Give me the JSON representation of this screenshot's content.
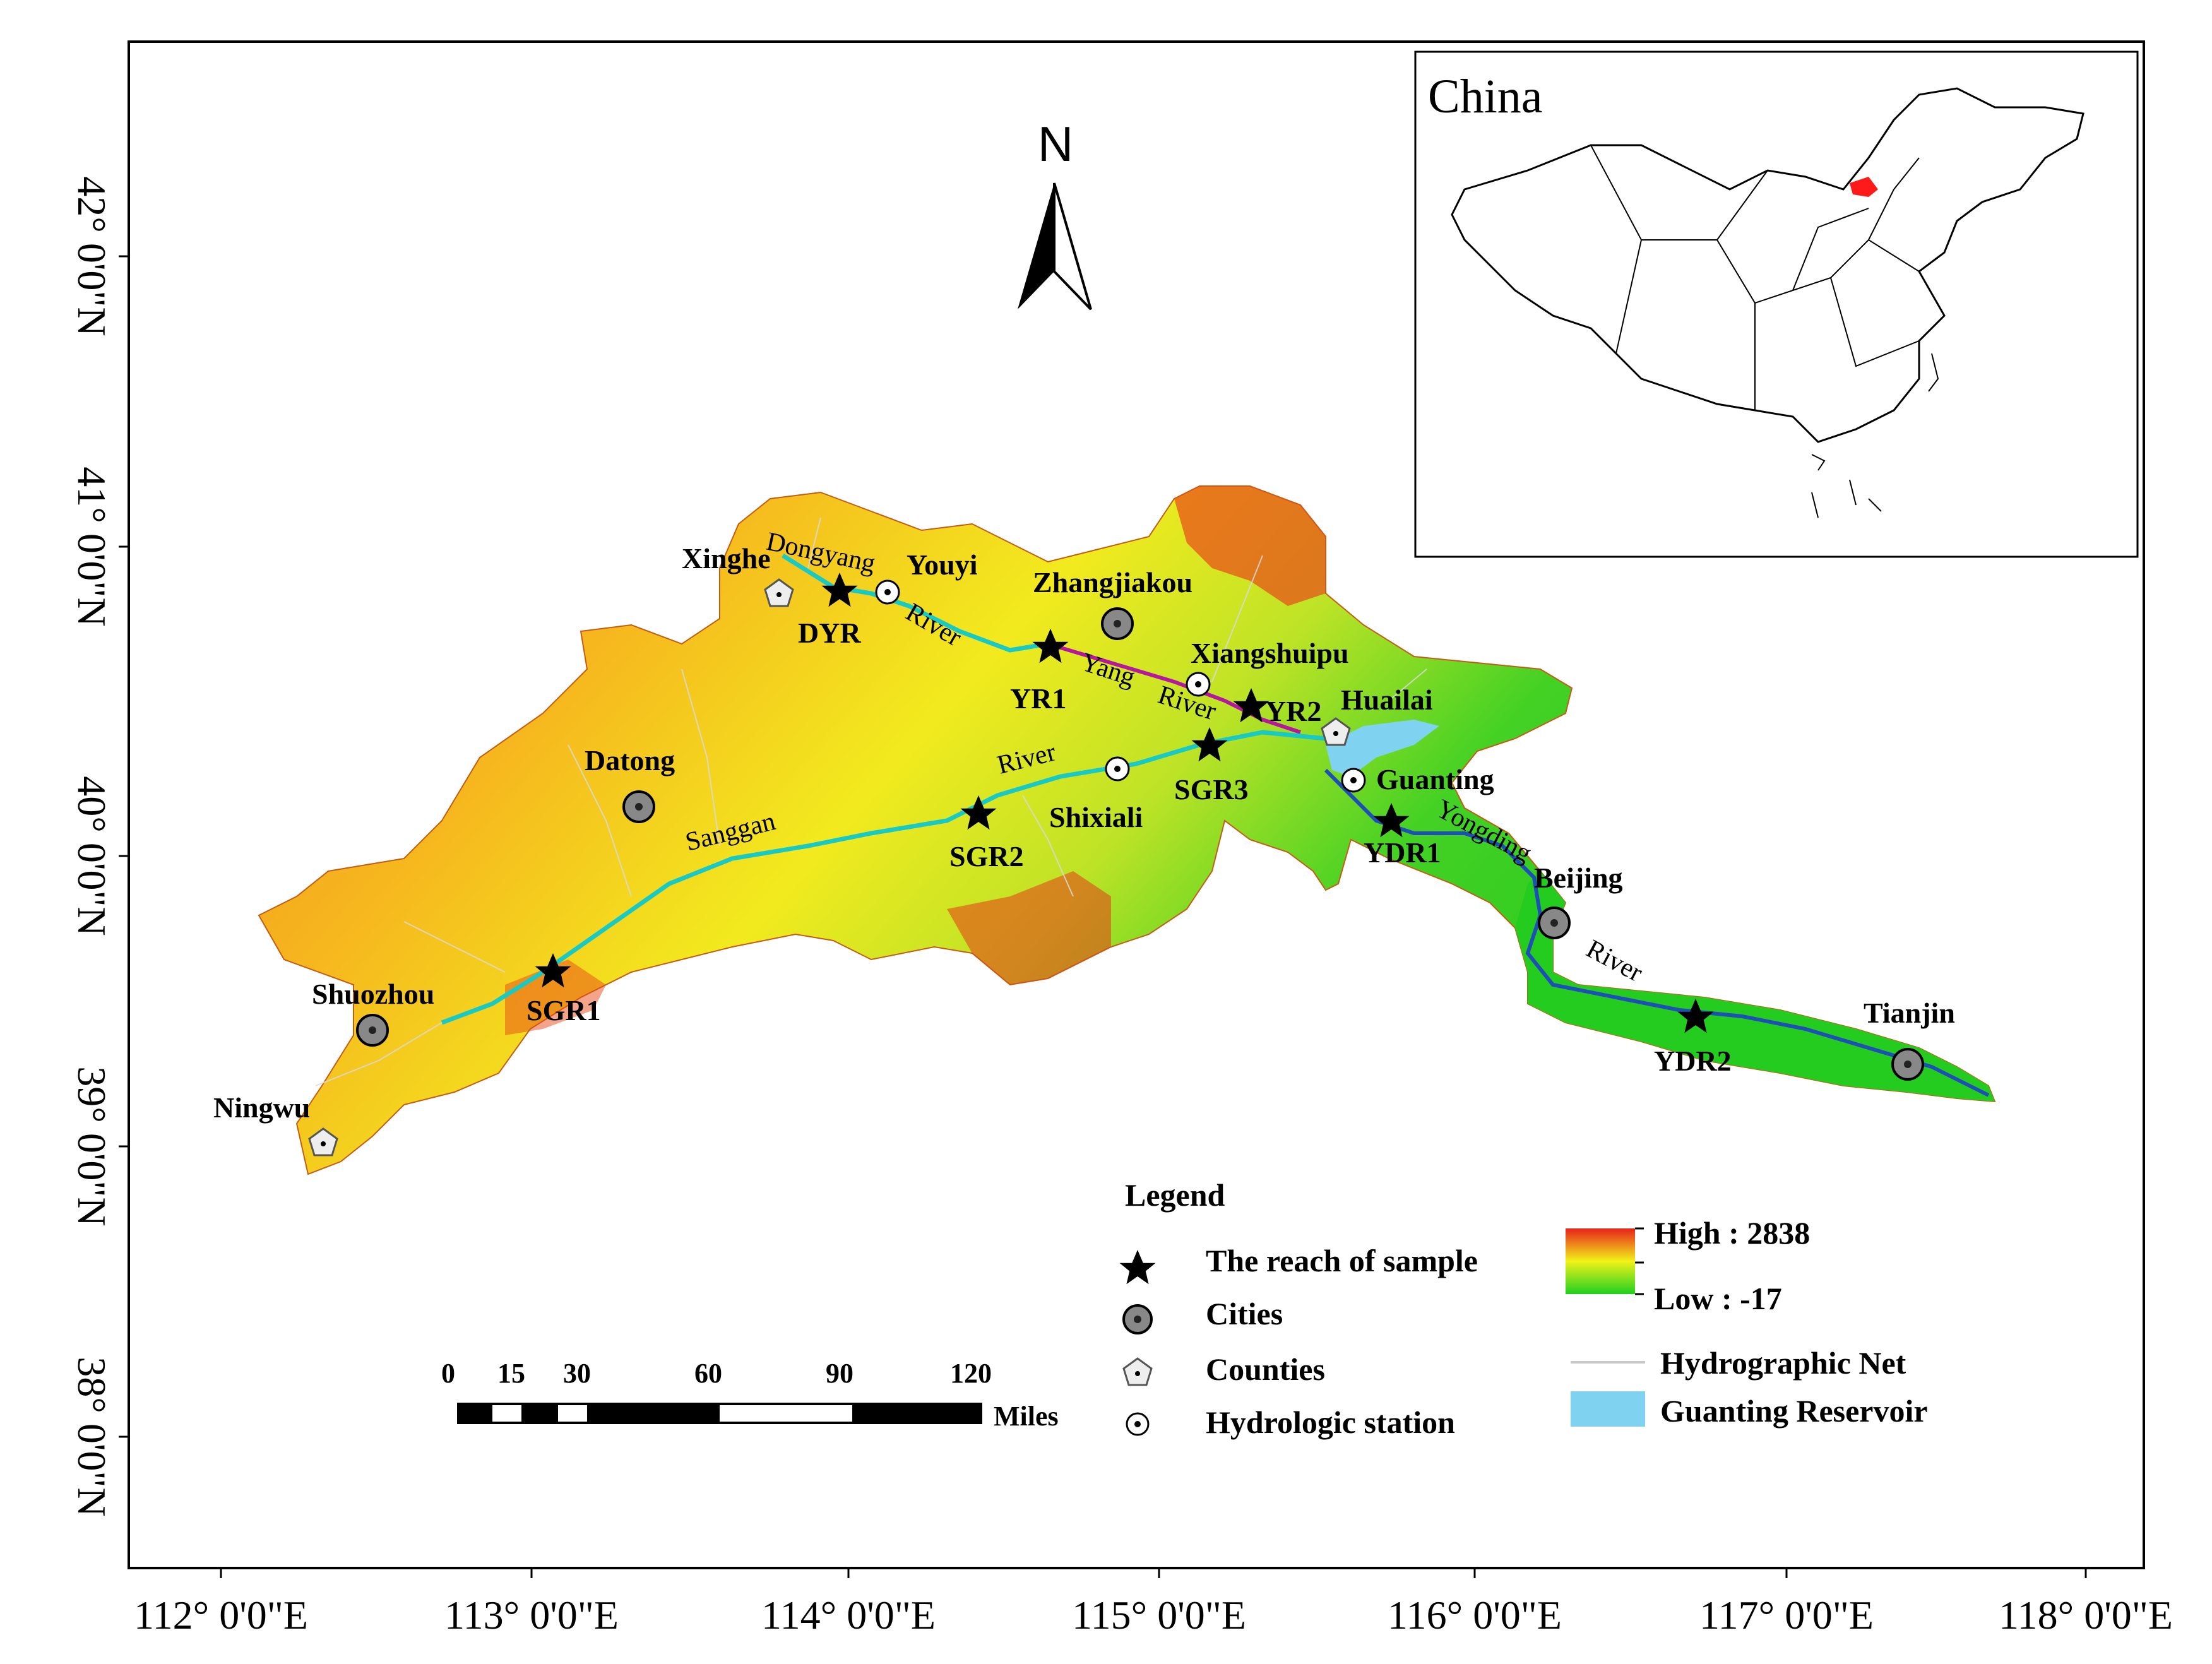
{
  "map": {
    "north_label": "N",
    "inset_title": "China",
    "lat_ticks": [
      {
        "value": 42,
        "label": "42° 0'0\"N"
      },
      {
        "value": 41,
        "label": "41° 0'0\"N"
      },
      {
        "value": 40,
        "label": "40° 0'0\"N"
      },
      {
        "value": 39,
        "label": "39° 0'0\"N"
      },
      {
        "value": 38,
        "label": "38° 0'0\"N"
      }
    ],
    "lon_ticks": [
      {
        "value": 112,
        "label": "112° 0'0\"E"
      },
      {
        "value": 113,
        "label": "113° 0'0\"E"
      },
      {
        "value": 114,
        "label": "114° 0'0\"E"
      },
      {
        "value": 115,
        "label": "115° 0'0\"E"
      },
      {
        "value": 116,
        "label": "116° 0'0\"E"
      },
      {
        "value": 117,
        "label": "117° 0'0\"E"
      },
      {
        "value": 118,
        "label": "118° 0'0\"E"
      }
    ],
    "rivers": {
      "dongyang": "Dongyang",
      "dongyang_river": "River",
      "yang": "Yang",
      "yang_river": "River",
      "sanggan": "Sanggan",
      "sanggan_river": "River",
      "yongding": "Yongding",
      "yongding_river": "River"
    },
    "places": {
      "xinghe": "Xinghe",
      "youyi": "Youyi",
      "zhangjiakou": "Zhangjiakou",
      "xiangshuipu": "Xiangshuipu",
      "huailai": "Huailai",
      "guanting": "Guanting",
      "datong": "Datong",
      "shixiali": "Shixiali",
      "beijing": "Beijing",
      "shuozhou": "Shuozhou",
      "tianjin": "Tianjin",
      "ningwu": "Ningwu"
    },
    "samples": {
      "dyr": "DYR",
      "yr1": "YR1",
      "yr2": "YR2",
      "sgr3": "SGR3",
      "sgr2": "SGR2",
      "sgr1": "SGR1",
      "ydr1": "YDR1",
      "ydr2": "YDR2"
    },
    "scale": {
      "ticks": [
        "0",
        "15",
        "30",
        "60",
        "90",
        "120"
      ],
      "unit": "Miles"
    },
    "legend": {
      "title": "Legend",
      "reach": "The reach of sample",
      "cities": "Cities",
      "counties": "Counties",
      "station": "Hydrologic station",
      "high": "High : 2838",
      "low": "Low : -17",
      "hydro_net": "Hydrographic Net",
      "reservoir": "Guanting Reservoir"
    },
    "colors": {
      "high": "#e8221a",
      "mid": "#f2f219",
      "low": "#1fd01f",
      "river_main": "#19c9c4",
      "river_lower": "#1d4fb6",
      "river_yang": "#b5179e",
      "reservoir": "#7fd3f0"
    }
  }
}
